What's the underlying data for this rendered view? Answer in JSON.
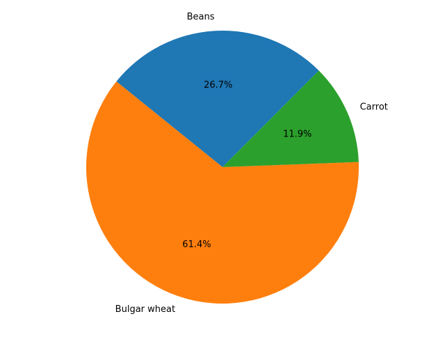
{
  "chart_data": {
    "type": "pie",
    "title": "",
    "slices": [
      {
        "label": "Beans",
        "value": 26.7,
        "pct_label": "26.7%",
        "color": "#1f77b4"
      },
      {
        "label": "Bulgar wheat",
        "value": 61.4,
        "pct_label": "61.4%",
        "color": "#ff7f0e"
      },
      {
        "label": "Carrot",
        "value": 11.9,
        "pct_label": "11.9%",
        "color": "#2ca02c"
      }
    ],
    "start_angle_deg": 45,
    "direction": "counterclockwise",
    "legend": "none"
  }
}
